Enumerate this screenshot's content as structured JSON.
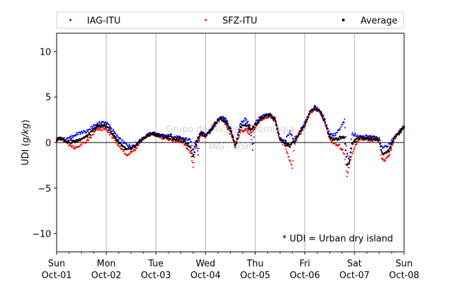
{
  "chart_data": {
    "type": "scatter",
    "ylabel": "UDI (g/kg)",
    "ylabel_parts": {
      "prefix": "UDI (",
      "italic": "g/kg",
      "suffix": ")"
    },
    "ylim": [
      -12,
      12
    ],
    "yticks": [
      -10,
      -5,
      0,
      5,
      10
    ],
    "xlim_days": [
      0,
      7
    ],
    "xticks": [
      {
        "day": "Sun",
        "date": "Oct-01"
      },
      {
        "day": "Mon",
        "date": "Oct-02"
      },
      {
        "day": "Tue",
        "date": "Oct-03"
      },
      {
        "day": "Wed",
        "date": "Oct-04"
      },
      {
        "day": "Thu",
        "date": "Oct-05"
      },
      {
        "day": "Fri",
        "date": "Oct-06"
      },
      {
        "day": "Sat",
        "date": "Oct-07"
      },
      {
        "day": "Sun",
        "date": "Oct-08"
      }
    ],
    "grid": "vertical",
    "zero_line": true,
    "legend_placement": "top (outside plot)",
    "annotation": "* UDI = Urban dry island",
    "watermark": [
      "Grupo de Micrometeorologia",
      "IAG - USP"
    ],
    "series": [
      {
        "name": "IAG-ITU",
        "color": "#0000ff",
        "points": [
          [
            0.0,
            0.4
          ],
          [
            0.1,
            0.5
          ],
          [
            0.2,
            0.3
          ],
          [
            0.3,
            0.6
          ],
          [
            0.4,
            0.9
          ],
          [
            0.5,
            1.1
          ],
          [
            0.6,
            1.2
          ],
          [
            0.7,
            1.6
          ],
          [
            0.8,
            2.0
          ],
          [
            0.9,
            2.2
          ],
          [
            1.0,
            2.2
          ],
          [
            1.1,
            1.6
          ],
          [
            1.2,
            0.8
          ],
          [
            1.3,
            0.2
          ],
          [
            1.4,
            -0.2
          ],
          [
            1.5,
            -0.4
          ],
          [
            1.6,
            -0.1
          ],
          [
            1.7,
            0.3
          ],
          [
            1.8,
            0.7
          ],
          [
            1.9,
            1.0
          ],
          [
            2.0,
            1.0
          ],
          [
            2.1,
            0.8
          ],
          [
            2.2,
            0.7
          ],
          [
            2.3,
            0.8
          ],
          [
            2.4,
            0.6
          ],
          [
            2.5,
            0.5
          ],
          [
            2.6,
            0.4
          ],
          [
            2.7,
            0.2
          ],
          [
            2.75,
            -0.9
          ],
          [
            2.8,
            0.3
          ],
          [
            2.85,
            -1.2
          ],
          [
            2.9,
            1.2
          ],
          [
            3.0,
            0.9
          ],
          [
            3.1,
            1.4
          ],
          [
            3.2,
            2.2
          ],
          [
            3.3,
            2.8
          ],
          [
            3.4,
            2.6
          ],
          [
            3.5,
            1.6
          ],
          [
            3.6,
            -0.4
          ],
          [
            3.7,
            2.1
          ],
          [
            3.8,
            2.6
          ],
          [
            3.9,
            1.8
          ],
          [
            3.95,
            -0.8
          ],
          [
            4.0,
            2.2
          ],
          [
            4.1,
            2.7
          ],
          [
            4.2,
            3.0
          ],
          [
            4.3,
            3.1
          ],
          [
            4.4,
            2.6
          ],
          [
            4.5,
            0.4
          ],
          [
            4.6,
            0.1
          ],
          [
            4.7,
            1.2
          ],
          [
            4.8,
            -0.1
          ],
          [
            4.9,
            1.2
          ],
          [
            5.0,
            2.2
          ],
          [
            5.1,
            3.4
          ],
          [
            5.2,
            3.9
          ],
          [
            5.3,
            3.6
          ],
          [
            5.4,
            2.5
          ],
          [
            5.5,
            1.0
          ],
          [
            5.6,
            0.8
          ],
          [
            5.7,
            1.4
          ],
          [
            5.8,
            2.4
          ],
          [
            5.85,
            -1.2
          ],
          [
            5.9,
            -1.8
          ],
          [
            5.95,
            0.9
          ],
          [
            6.0,
            0.9
          ],
          [
            6.1,
            0.6
          ],
          [
            6.2,
            0.7
          ],
          [
            6.3,
            0.6
          ],
          [
            6.4,
            0.6
          ],
          [
            6.5,
            0.4
          ],
          [
            6.55,
            -0.6
          ],
          [
            6.6,
            -0.4
          ],
          [
            6.7,
            -0.3
          ],
          [
            6.8,
            0.6
          ],
          [
            6.9,
            1.2
          ],
          [
            7.0,
            1.8
          ]
        ]
      },
      {
        "name": "SFZ-ITU",
        "color": "#ff0000",
        "points": [
          [
            0.0,
            0.3
          ],
          [
            0.1,
            0.4
          ],
          [
            0.2,
            0.0
          ],
          [
            0.3,
            -0.4
          ],
          [
            0.4,
            -0.6
          ],
          [
            0.5,
            -0.2
          ],
          [
            0.6,
            0.1
          ],
          [
            0.7,
            0.6
          ],
          [
            0.8,
            1.4
          ],
          [
            0.9,
            1.5
          ],
          [
            1.0,
            1.4
          ],
          [
            1.1,
            0.8
          ],
          [
            1.2,
            0.0
          ],
          [
            1.3,
            -0.6
          ],
          [
            1.4,
            -1.4
          ],
          [
            1.5,
            -1.0
          ],
          [
            1.6,
            -0.7
          ],
          [
            1.7,
            0.2
          ],
          [
            1.8,
            0.6
          ],
          [
            1.9,
            0.9
          ],
          [
            2.0,
            0.8
          ],
          [
            2.1,
            0.6
          ],
          [
            2.2,
            0.5
          ],
          [
            2.3,
            0.3
          ],
          [
            2.4,
            0.2
          ],
          [
            2.5,
            0.1
          ],
          [
            2.6,
            -0.4
          ],
          [
            2.7,
            -1.2
          ],
          [
            2.75,
            -2.6
          ],
          [
            2.8,
            -0.6
          ],
          [
            2.9,
            1.0
          ],
          [
            3.0,
            0.6
          ],
          [
            3.1,
            1.2
          ],
          [
            3.2,
            2.0
          ],
          [
            3.3,
            2.6
          ],
          [
            3.4,
            2.0
          ],
          [
            3.5,
            1.0
          ],
          [
            3.6,
            -0.3
          ],
          [
            3.7,
            1.2
          ],
          [
            3.8,
            1.4
          ],
          [
            3.9,
            1.0
          ],
          [
            4.0,
            1.6
          ],
          [
            4.1,
            2.4
          ],
          [
            4.2,
            2.8
          ],
          [
            4.3,
            2.9
          ],
          [
            4.4,
            2.4
          ],
          [
            4.5,
            0.2
          ],
          [
            4.6,
            -0.3
          ],
          [
            4.7,
            -2.0
          ],
          [
            4.75,
            -2.7
          ],
          [
            4.8,
            0.6
          ],
          [
            4.9,
            0.9
          ],
          [
            5.0,
            1.8
          ],
          [
            5.1,
            3.2
          ],
          [
            5.2,
            3.7
          ],
          [
            5.3,
            3.4
          ],
          [
            5.4,
            2.2
          ],
          [
            5.5,
            0.4
          ],
          [
            5.6,
            -0.2
          ],
          [
            5.7,
            -0.4
          ],
          [
            5.8,
            -1.2
          ],
          [
            5.85,
            -3.6
          ],
          [
            5.9,
            -2.4
          ],
          [
            5.95,
            -1.2
          ],
          [
            6.0,
            -0.6
          ],
          [
            6.1,
            0.4
          ],
          [
            6.2,
            0.4
          ],
          [
            6.3,
            0.3
          ],
          [
            6.4,
            0.3
          ],
          [
            6.5,
            0.2
          ],
          [
            6.55,
            -1.8
          ],
          [
            6.6,
            -2.0
          ],
          [
            6.7,
            -1.4
          ],
          [
            6.8,
            0.4
          ],
          [
            6.9,
            1.0
          ],
          [
            7.0,
            1.6
          ]
        ]
      },
      {
        "name": "Average",
        "color": "#000000",
        "points": [
          [
            0.0,
            0.35
          ],
          [
            0.1,
            0.45
          ],
          [
            0.2,
            0.15
          ],
          [
            0.3,
            0.1
          ],
          [
            0.4,
            0.15
          ],
          [
            0.5,
            0.45
          ],
          [
            0.6,
            0.65
          ],
          [
            0.7,
            1.1
          ],
          [
            0.8,
            1.7
          ],
          [
            0.9,
            1.85
          ],
          [
            1.0,
            1.8
          ],
          [
            1.1,
            1.2
          ],
          [
            1.2,
            0.4
          ],
          [
            1.3,
            -0.2
          ],
          [
            1.4,
            -0.8
          ],
          [
            1.5,
            -0.7
          ],
          [
            1.6,
            -0.4
          ],
          [
            1.7,
            0.25
          ],
          [
            1.8,
            0.65
          ],
          [
            1.9,
            0.95
          ],
          [
            2.0,
            0.9
          ],
          [
            2.1,
            0.7
          ],
          [
            2.2,
            0.6
          ],
          [
            2.3,
            0.55
          ],
          [
            2.4,
            0.4
          ],
          [
            2.5,
            0.3
          ],
          [
            2.6,
            0.0
          ],
          [
            2.7,
            -0.5
          ],
          [
            2.75,
            -1.6
          ],
          [
            2.8,
            -0.2
          ],
          [
            2.9,
            1.1
          ],
          [
            3.0,
            0.75
          ],
          [
            3.1,
            1.3
          ],
          [
            3.2,
            2.1
          ],
          [
            3.3,
            2.7
          ],
          [
            3.4,
            2.3
          ],
          [
            3.5,
            1.3
          ],
          [
            3.6,
            -0.35
          ],
          [
            3.7,
            1.65
          ],
          [
            3.8,
            2.0
          ],
          [
            3.9,
            1.4
          ],
          [
            4.0,
            1.9
          ],
          [
            4.1,
            2.55
          ],
          [
            4.2,
            2.9
          ],
          [
            4.3,
            3.0
          ],
          [
            4.4,
            2.5
          ],
          [
            4.5,
            0.3
          ],
          [
            4.6,
            -0.1
          ],
          [
            4.7,
            -0.4
          ],
          [
            4.8,
            0.25
          ],
          [
            4.9,
            1.05
          ],
          [
            5.0,
            2.0
          ],
          [
            5.1,
            3.3
          ],
          [
            5.2,
            3.8
          ],
          [
            5.3,
            3.5
          ],
          [
            5.4,
            2.35
          ],
          [
            5.5,
            0.7
          ],
          [
            5.6,
            0.3
          ],
          [
            5.7,
            0.5
          ],
          [
            5.8,
            0.6
          ],
          [
            5.85,
            -2.4
          ],
          [
            5.9,
            -2.1
          ],
          [
            5.95,
            -0.2
          ],
          [
            6.0,
            0.15
          ],
          [
            6.1,
            0.5
          ],
          [
            6.2,
            0.55
          ],
          [
            6.3,
            0.45
          ],
          [
            6.4,
            0.45
          ],
          [
            6.5,
            0.3
          ],
          [
            6.55,
            -1.2
          ],
          [
            6.6,
            -1.2
          ],
          [
            6.7,
            -0.85
          ],
          [
            6.8,
            0.5
          ],
          [
            6.9,
            1.1
          ],
          [
            7.0,
            1.7
          ]
        ]
      }
    ]
  }
}
